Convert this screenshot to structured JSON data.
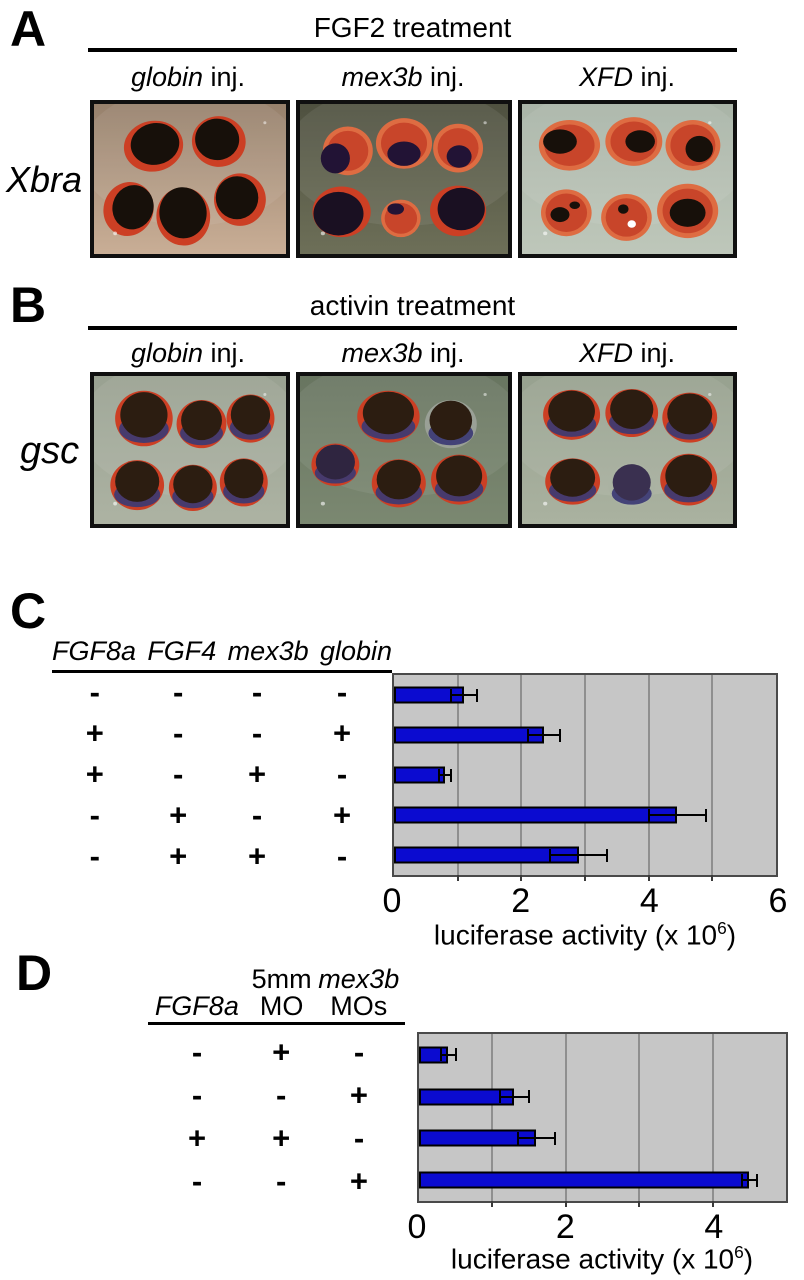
{
  "page": {
    "background": "#ffffff"
  },
  "panels": {
    "A": {
      "label": "A",
      "treatment_title": "FGF2 treatment",
      "row_label": "Xbra",
      "columns": [
        {
          "gene": "globin",
          "suffix": " inj."
        },
        {
          "gene": "mex3b",
          "suffix": " inj."
        },
        {
          "gene": "XFD",
          "suffix": " inj."
        }
      ]
    },
    "B": {
      "label": "B",
      "treatment_title": "activin treatment",
      "row_label": "gsc",
      "columns": [
        {
          "gene": "globin",
          "suffix": " inj."
        },
        {
          "gene": "mex3b",
          "suffix": " inj."
        },
        {
          "gene": "XFD",
          "suffix": " inj."
        }
      ]
    },
    "C": {
      "label": "C"
    },
    "D": {
      "label": "D",
      "table_headers": [
        {
          "top": "",
          "bottom": "FGF8a",
          "italic": "bottom"
        },
        {
          "top": "5mm",
          "bottom": "MO",
          "italic": "none"
        },
        {
          "top": "mex3b",
          "bottom": "MOs",
          "italic": "top"
        }
      ]
    }
  },
  "photo_colors": {
    "stain_red": "#cc3f24",
    "stain_dark": "#17100a",
    "stain_purple": "#3c3a74",
    "embryo_red_body": "#c8452a"
  },
  "chart_data": [
    {
      "panel": "C",
      "type": "bar",
      "orientation": "horizontal",
      "conditions_header": [
        "FGF8a",
        "FGF4",
        "mex3b",
        "globin"
      ],
      "conditions": [
        [
          "-",
          "-",
          "-",
          "-"
        ],
        [
          "+",
          "-",
          "-",
          "+"
        ],
        [
          "+",
          "-",
          "+",
          "-"
        ],
        [
          "-",
          "+",
          "-",
          "+"
        ],
        [
          "-",
          "+",
          "+",
          "-"
        ]
      ],
      "values": [
        1.1,
        2.35,
        0.8,
        4.45,
        2.9
      ],
      "errors": [
        0.2,
        0.25,
        0.1,
        0.45,
        0.45
      ],
      "xlabel": "luciferase activity (x 10⁶)",
      "xlabel_prefix": "luciferase activity (x 10",
      "xlabel_sup": "6",
      "xlabel_suffix": ")",
      "xlim": [
        0,
        6
      ],
      "xticks": [
        0,
        2,
        4,
        6
      ],
      "gridlines": [
        1,
        2,
        3,
        4,
        5
      ],
      "bar_color": "#0b0bd0",
      "plot_bg": "#c6c6c6",
      "grid_color": "#8f8f8f"
    },
    {
      "panel": "D",
      "type": "bar",
      "orientation": "horizontal",
      "conditions_header": [
        "FGF8a",
        "5mm MO",
        "mex3b MOs"
      ],
      "conditions": [
        [
          "-",
          "+",
          "-"
        ],
        [
          "-",
          "-",
          "+"
        ],
        [
          "+",
          "+",
          "-"
        ],
        [
          "-",
          "-",
          "+"
        ]
      ],
      "values": [
        0.4,
        1.3,
        1.6,
        4.5
      ],
      "errors": [
        0.1,
        0.2,
        0.25,
        0.1
      ],
      "xlabel": "luciferase activity (x 10⁶)",
      "xlabel_prefix": "luciferase activity (x 10",
      "xlabel_sup": "6",
      "xlabel_suffix": ")",
      "xlim": [
        0,
        5
      ],
      "xticks": [
        0,
        2,
        4
      ],
      "gridlines": [
        1,
        2,
        3,
        4
      ],
      "bar_color": "#0b0bd0",
      "plot_bg": "#c6c6c6",
      "grid_color": "#8f8f8f"
    }
  ]
}
